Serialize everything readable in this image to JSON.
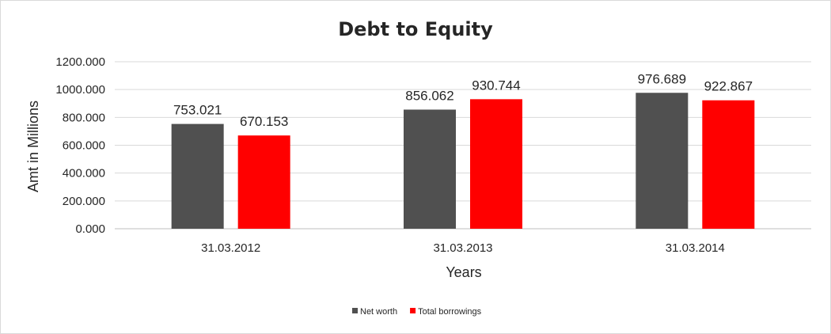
{
  "chart_data": {
    "type": "bar",
    "title": "Debt to Equity",
    "xlabel": "Years",
    "ylabel": "Amt in Millions",
    "categories": [
      "31.03.2012",
      "31.03.2013",
      "31.03.2014"
    ],
    "series": [
      {
        "name": "Net worth",
        "color": "#505050",
        "values": [
          753.021,
          856.062,
          976.689
        ],
        "labels": [
          "753.021",
          "856.062",
          "976.689"
        ]
      },
      {
        "name": "Total borrowings",
        "color": "#ff0000",
        "values": [
          670.153,
          930.744,
          922.867
        ],
        "labels": [
          "670.153",
          "930.744",
          "922.867"
        ]
      }
    ],
    "ylim": [
      0,
      1200
    ],
    "yticks": [
      "0.000",
      "200.000",
      "400.000",
      "600.000",
      "800.000",
      "1000.000",
      "1200.000"
    ],
    "grid": true,
    "legend": "bottom"
  }
}
